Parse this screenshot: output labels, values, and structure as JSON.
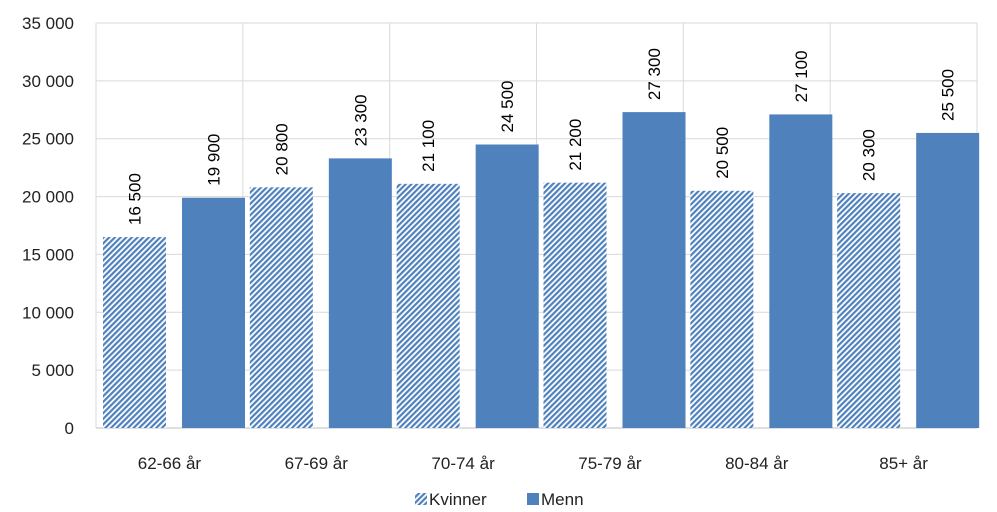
{
  "chart_data": {
    "type": "bar",
    "categories": [
      "62-66 år",
      "67-69 år",
      "70-74 år",
      "75-79 år",
      "80-84 år",
      "85+ år"
    ],
    "series": [
      {
        "name": "Kvinner",
        "values": [
          16500,
          20800,
          21100,
          21200,
          20500,
          20300
        ],
        "labels": [
          "16 500",
          "20 800",
          "21 100",
          "21 200",
          "20 500",
          "20 300"
        ],
        "pattern": "diagonal-hatch",
        "color": "#4f81bd"
      },
      {
        "name": "Menn",
        "values": [
          19900,
          23300,
          24500,
          27300,
          27100,
          25500
        ],
        "labels": [
          "19 900",
          "23 300",
          "24 500",
          "27 300",
          "27 100",
          "25 500"
        ],
        "pattern": "solid",
        "color": "#4f81bd"
      }
    ],
    "yticks": [
      "0",
      "5 000",
      "10 000",
      "15 000",
      "20 000",
      "25 000",
      "30 000",
      "35 000"
    ],
    "ylim": [
      0,
      35000
    ],
    "grid": true,
    "legend_position": "bottom"
  }
}
